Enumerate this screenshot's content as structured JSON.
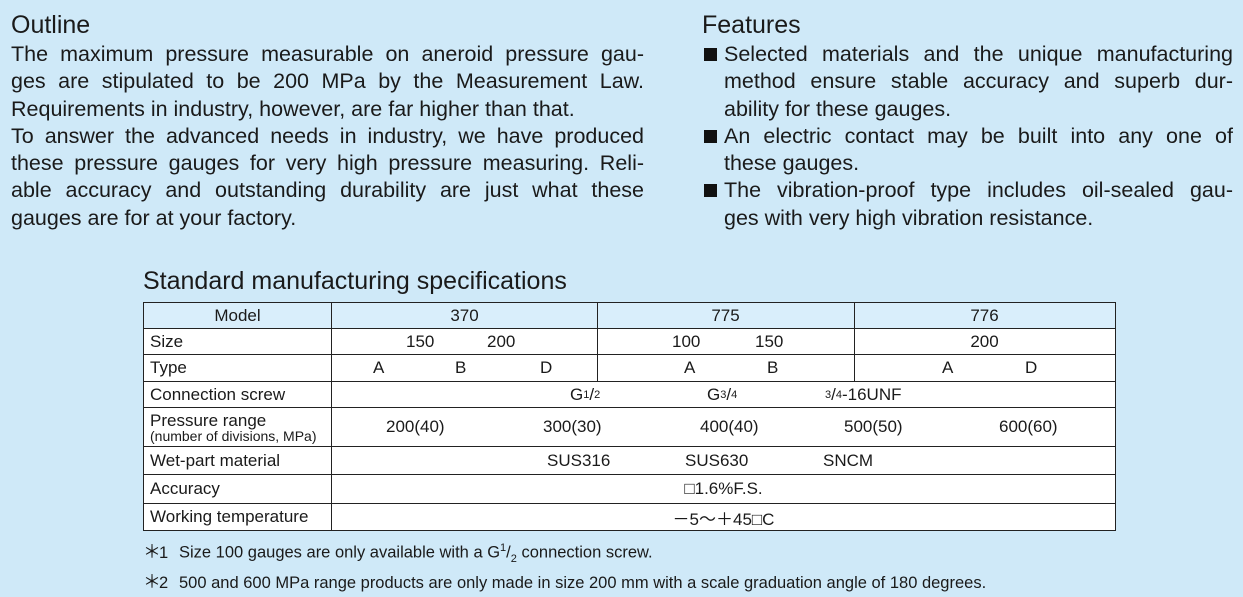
{
  "outline": {
    "title": "Outline",
    "lines": [
      "The maximum pressure measurable on aneroid pressure gau-",
      "ges are stipulated to be 200 MPa by the Measurement Law.",
      "Requirements in industry, however, are far higher than that.",
      "To answer the advanced needs in industry, we have produced",
      "these pressure gauges for very high pressure measuring. Reli-",
      "able accuracy and outstanding durability are just what these",
      "gauges are for at your factory."
    ]
  },
  "features": {
    "title": "Features",
    "bullets": [
      [
        "Selected materials and the unique manufacturing",
        "method ensure stable accuracy and superb dur-",
        "ability for these gauges."
      ],
      [
        "An electric contact may be built into any one of",
        "these gauges."
      ],
      [
        "The vibration-proof type includes oil-sealed gau-",
        "ges with very high vibration resistance."
      ]
    ]
  },
  "spec": {
    "title": "Standard manufacturing specifications",
    "labels": {
      "model": "Model",
      "size": "Size",
      "type": "Type",
      "connection": "Connection screw",
      "pressure_line1": "Pressure range",
      "pressure_line2": "(number of divisions, MPa)",
      "material": "Wet-part material",
      "accuracy": "Accuracy",
      "temperature": "Working temperature"
    },
    "models": [
      "370",
      "775",
      "776"
    ],
    "sizes": {
      "m370": [
        "150",
        "200"
      ],
      "m775": [
        "100",
        "150"
      ],
      "m776": [
        "200"
      ]
    },
    "types": {
      "m370": [
        "A",
        "B",
        "D"
      ],
      "m775": [
        "A",
        "B"
      ],
      "m776": [
        "A",
        "D"
      ]
    },
    "connection": {
      "g_half_base": "G",
      "g_half_num": "1",
      "g_half_den": "2",
      "g_threequarter_base": "G",
      "g_threequarter_num": "3",
      "g_threequarter_den": "4",
      "unf_num": "3",
      "unf_den": "4",
      "unf_suffix": "-16UNF"
    },
    "pressure": [
      "200(40)",
      "300(30)",
      "400(40)",
      "500(50)",
      "600(60)"
    ],
    "materials": [
      "SUS316",
      "SUS630",
      "SNCM"
    ],
    "accuracy": "□1.6%F.S.",
    "temperature": "－5～＋45□C"
  },
  "notes": [
    {
      "star": "＊",
      "num": "1",
      "text_pre": "Size 100 gauges are only available with a G",
      "sup": "1",
      "slash": "/",
      "sub": "2",
      "text_post": " connection screw."
    },
    {
      "star": "＊",
      "num": "2",
      "text": "500 and 600 MPa range products are only made in size 200 mm with a scale graduation angle of 180 degrees."
    }
  ]
}
